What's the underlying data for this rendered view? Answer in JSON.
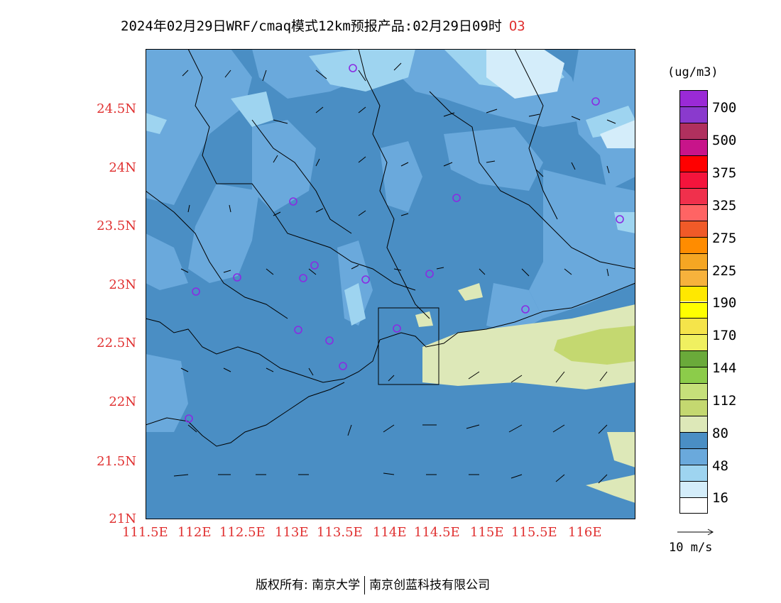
{
  "title": {
    "main": "2024年02月29日WRF/cmaq模式12km预报产品:02月29日09时",
    "species": "O3"
  },
  "axes": {
    "lat_labels": [
      "24.5N",
      "24N",
      "23.5N",
      "23N",
      "22.5N",
      "22N",
      "21.5N",
      "21N"
    ],
    "lon_labels": [
      "111.5E",
      "112E",
      "112.5E",
      "113E",
      "113.5E",
      "114E",
      "114.5E",
      "115E",
      "115.5E",
      "116E"
    ]
  },
  "legend": {
    "unit": "(ug/m3)",
    "labels": [
      "700",
      "500",
      "375",
      "325",
      "275",
      "225",
      "190",
      "170",
      "144",
      "112",
      "80",
      "48",
      "16"
    ],
    "colors": [
      "#9a2ad6",
      "#8a3acd",
      "#b0305e",
      "#c8148a",
      "#ff0000",
      "#f4143c",
      "#f0304c",
      "#ff6464",
      "#f05a28",
      "#ff8c00",
      "#f5a623",
      "#f7b23c",
      "#ffe800",
      "#ffff00",
      "#f5e44a",
      "#f0f060",
      "#6aaa3a",
      "#8ccc4a",
      "#c6e07a",
      "#c4d870",
      "#dde8b8",
      "#4a8ec4",
      "#6aa9dc",
      "#9ed4f0",
      "#d4edfa",
      "#ffffff"
    ]
  },
  "wind_reference": {
    "label": "10 m/s"
  },
  "footer": {
    "left": "版权所有: 南京大学",
    "right": "南京创蓝科技有限公司"
  },
  "colors": {
    "ocean_base": "#4a8ec4",
    "land_base": "#4a8ec4",
    "light_blue": "#6aa9dc",
    "pale_blue": "#9ed4f0",
    "very_pale_blue": "#d4edfa",
    "pale_green": "#dde8b8",
    "green": "#c4d870",
    "axis_red": "#e03030",
    "station_purple": "#8a2be2"
  }
}
